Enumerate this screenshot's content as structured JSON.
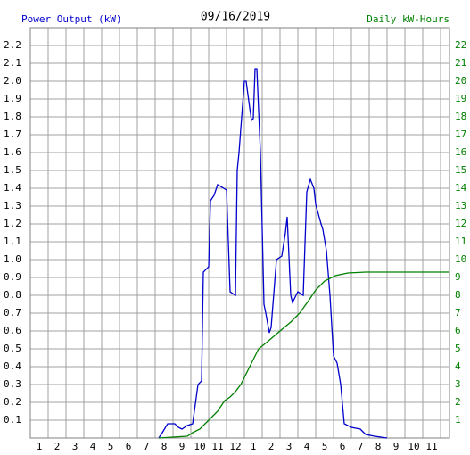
{
  "chart_data": {
    "type": "line",
    "title": "09/16/2019",
    "y_label": "Power Output (kW)",
    "y2_label": "Daily kW-Hours",
    "xlim": [
      0.5,
      24
    ],
    "xticks": [
      1,
      2,
      3,
      4,
      5,
      6,
      7,
      8,
      9,
      10,
      11,
      {
        "value": 12,
        "label": "12"
      },
      {
        "value": 13,
        "label": "1"
      },
      {
        "value": 14,
        "label": "2"
      },
      {
        "value": 15,
        "label": "3"
      },
      {
        "value": 16,
        "label": "4"
      },
      {
        "value": 17,
        "label": "5"
      },
      {
        "value": 18,
        "label": "6"
      },
      {
        "value": 19,
        "label": "7"
      },
      {
        "value": 20,
        "label": "8"
      },
      {
        "value": 21,
        "label": "9"
      },
      {
        "value": 22,
        "label": "10"
      },
      {
        "value": 23,
        "label": "11"
      }
    ],
    "ylim": [
      0,
      2.3
    ],
    "yticks": [
      0.1,
      0.2,
      0.3,
      0.4,
      0.5,
      0.6,
      0.7,
      0.8,
      0.9,
      {
        "value": 1,
        "label": "1.0"
      },
      1.1,
      1.2,
      1.3,
      1.4,
      1.5,
      1.6,
      1.7,
      1.8,
      1.9,
      {
        "value": 2,
        "label": "2.0"
      },
      2.1,
      2.2
    ],
    "y2lim": [
      0,
      23
    ],
    "y2ticks": [
      1,
      2,
      3,
      4,
      5,
      6,
      7,
      8,
      9,
      10,
      11,
      12,
      13,
      14,
      15,
      16,
      17,
      18,
      19,
      20,
      21,
      22
    ],
    "grid": true,
    "series": [
      {
        "name": "Power Output (kW)",
        "color": "#0000cc",
        "x": [
          7.7,
          7.9,
          8.2,
          8.6,
          8.8,
          9.0,
          9.3,
          9.6,
          9.9,
          10.1,
          10.2,
          10.5,
          10.6,
          10.8,
          11.0,
          11.5,
          11.7,
          12.0,
          12.1,
          12.2,
          12.5,
          12.6,
          12.8,
          12.9,
          13.0,
          13.1,
          13.2,
          13.4,
          13.6,
          13.7,
          13.9,
          14.0,
          14.3,
          14.6,
          14.8,
          14.9,
          15.1,
          15.2,
          15.5,
          15.8,
          16.0,
          16.2,
          16.4,
          16.5,
          16.8,
          16.9,
          17.1,
          17.3,
          17.5,
          17.7,
          17.9,
          18.1,
          18.5,
          19.0,
          19.3,
          19.8,
          20.5
        ],
        "values": [
          0,
          0.03,
          0.08,
          0.08,
          0.06,
          0.05,
          0.07,
          0.08,
          0.3,
          0.32,
          0.93,
          0.96,
          1.33,
          1.36,
          1.42,
          1.39,
          0.82,
          0.8,
          1.5,
          1.6,
          2.0,
          2.0,
          1.85,
          1.78,
          1.79,
          2.07,
          2.07,
          1.6,
          0.75,
          0.7,
          0.59,
          0.62,
          1.0,
          1.02,
          1.15,
          1.24,
          0.8,
          0.76,
          0.82,
          0.8,
          1.38,
          1.45,
          1.4,
          1.31,
          1.2,
          1.17,
          1.05,
          0.8,
          0.46,
          0.42,
          0.3,
          0.08,
          0.06,
          0.05,
          0.02,
          0.01,
          0
        ]
      },
      {
        "name": "Daily kW-Hours",
        "color": "#008000",
        "axis": "y2",
        "x": [
          7.7,
          8.5,
          9.3,
          9.6,
          10.0,
          10.5,
          11.0,
          11.4,
          11.7,
          12.0,
          12.3,
          12.8,
          13.3,
          13.8,
          14.5,
          15.1,
          15.6,
          16.1,
          16.5,
          17.0,
          17.6,
          18.3,
          19.3,
          24.0
        ],
        "values": [
          0,
          0.05,
          0.1,
          0.3,
          0.5,
          1.0,
          1.5,
          2.1,
          2.3,
          2.6,
          3.0,
          4.0,
          5.0,
          5.4,
          6.0,
          6.5,
          7.0,
          7.7,
          8.3,
          8.8,
          9.1,
          9.25,
          9.3,
          9.3
        ]
      }
    ]
  }
}
